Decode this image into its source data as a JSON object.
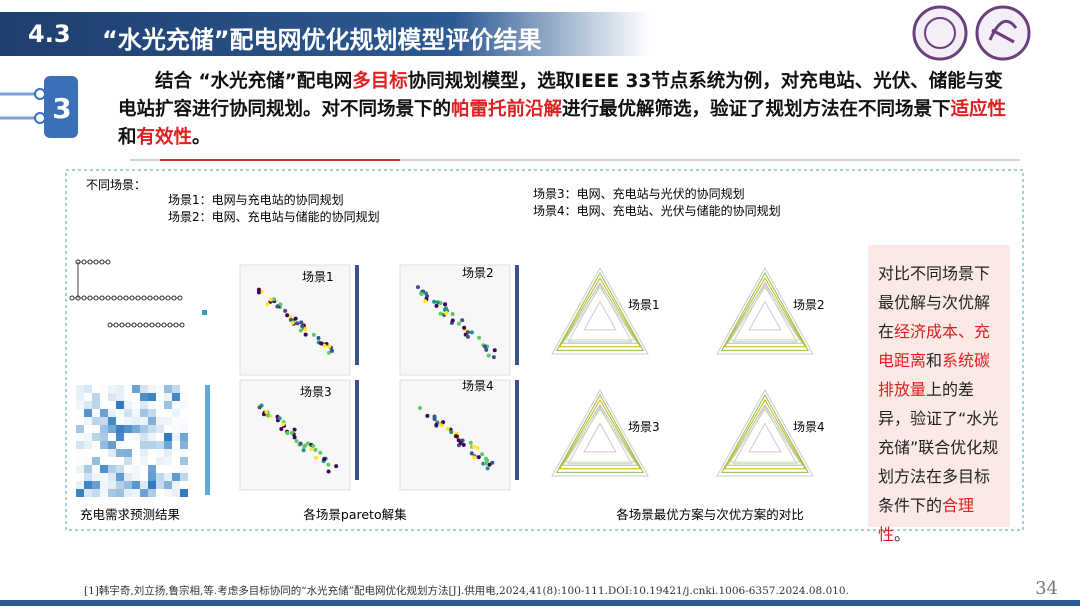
{
  "header": {
    "section": "4.3",
    "title": "“水光充储”配电网优化规划模型评价结果"
  },
  "icon": {
    "label": "3"
  },
  "intro": {
    "parts": [
      {
        "text": "结合 “水光充储”配电网"
      },
      {
        "text": "多目标",
        "color": "#e02020"
      },
      {
        "text": "协同规划模型，选取IEEE 33节点系统为例，对充电站、光伏、储能与变电站扩容进行协同规划。对不同场景下的"
      },
      {
        "text": "帕雷托前沿解",
        "color": "#e02020"
      },
      {
        "text": "进行最优解筛选，验证了规划方法在不同场景下"
      },
      {
        "text": "适应性",
        "color": "#e02020"
      },
      {
        "text": "和"
      },
      {
        "text": "有效性",
        "color": "#e02020"
      },
      {
        "text": "。"
      }
    ]
  },
  "figure": {
    "scenarios_heading": "不同场景：",
    "scenarios": [
      "场景1：电网与充电站的协同规划",
      "场景2：电网、充电站与储能的协同规划",
      "场景3：电网、充电站与光伏的协同规划",
      "场景4：电网、充电站、光伏与储能的协同规划"
    ],
    "pareto_labels": [
      "场景1",
      "场景2",
      "场景3",
      "场景4"
    ],
    "radar_labels": [
      "场景1",
      "场景2",
      "场景3",
      "场景4"
    ],
    "captions": [
      "充电需求预测结果",
      "各场景pareto解集",
      "各场景最优方案与次优方案的对比"
    ]
  },
  "side_note": {
    "parts": [
      {
        "text": "对比不同场景下最优解与次优解在"
      },
      {
        "text": "经济成本、充电距离",
        "color": "#e02020"
      },
      {
        "text": "和"
      },
      {
        "text": "系统碳排放量",
        "color": "#e02020"
      },
      {
        "text": "上的差异，验证了“水光充储”联合优化规划方法在多目标条件下的"
      },
      {
        "text": "合理性",
        "color": "#e02020"
      },
      {
        "text": "。"
      }
    ]
  },
  "footer": {
    "reference": "[1]韩宇奇,刘立扬,鲁宗相,等.考虑多目标协同的“水光充储”配电网优化规划方法[J].供用电,2024,41(8):100-111.DOI:10.19421/j.cnki.1006-6357.2024.08.010.",
    "page": "34"
  }
}
